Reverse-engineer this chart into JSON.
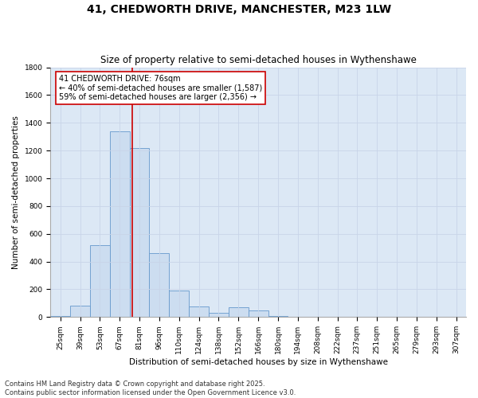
{
  "title": "41, CHEDWORTH DRIVE, MANCHESTER, M23 1LW",
  "subtitle": "Size of property relative to semi-detached houses in Wythenshawe",
  "xlabel": "Distribution of semi-detached houses by size in Wythenshawe",
  "ylabel": "Number of semi-detached properties",
  "bins": [
    "25sqm",
    "39sqm",
    "53sqm",
    "67sqm",
    "81sqm",
    "96sqm",
    "110sqm",
    "124sqm",
    "138sqm",
    "152sqm",
    "166sqm",
    "180sqm",
    "194sqm",
    "208sqm",
    "222sqm",
    "237sqm",
    "251sqm",
    "265sqm",
    "279sqm",
    "293sqm",
    "307sqm"
  ],
  "values": [
    10,
    80,
    520,
    1340,
    1220,
    460,
    190,
    75,
    30,
    70,
    50,
    10,
    0,
    0,
    0,
    0,
    0,
    0,
    0,
    0,
    0
  ],
  "bar_color": "#ccddf0",
  "bar_edge_color": "#6699cc",
  "vline_color": "#cc0000",
  "vline_pos": 3.65,
  "annotation_text": "41 CHEDWORTH DRIVE: 76sqm\n← 40% of semi-detached houses are smaller (1,587)\n59% of semi-detached houses are larger (2,356) →",
  "annotation_box_color": "#ffffff",
  "annotation_box_edge": "#cc0000",
  "ylim": [
    0,
    1800
  ],
  "yticks": [
    0,
    200,
    400,
    600,
    800,
    1000,
    1200,
    1400,
    1600,
    1800
  ],
  "grid_color": "#c8d4e8",
  "bg_color": "#dce8f5",
  "footer": "Contains HM Land Registry data © Crown copyright and database right 2025.\nContains public sector information licensed under the Open Government Licence v3.0.",
  "title_fontsize": 10,
  "subtitle_fontsize": 8.5,
  "label_fontsize": 7.5,
  "tick_fontsize": 6.5,
  "footer_fontsize": 6.0,
  "annot_fontsize": 7.0
}
